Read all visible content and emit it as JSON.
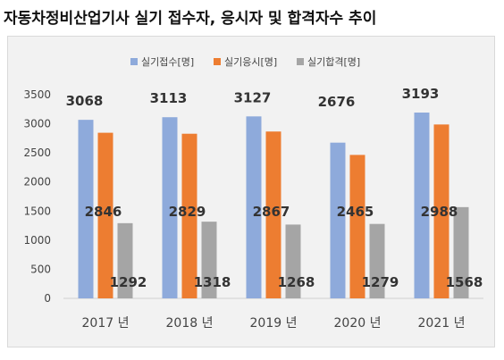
{
  "page": {
    "title": "자동차정비산업기사 실기 접수자, 응시자 및 합격자수 추이"
  },
  "chart_data": {
    "type": "bar",
    "categories": [
      "2017 년",
      "2018 년",
      "2019 년",
      "2020 년",
      "2021 년"
    ],
    "series": [
      {
        "name": "실기접수[명]",
        "color": "#8eaadb",
        "values": [
          3068,
          3113,
          3127,
          2676,
          3193
        ]
      },
      {
        "name": "실기응시[명]",
        "color": "#ed7d31",
        "values": [
          2846,
          2829,
          2867,
          2465,
          2988
        ]
      },
      {
        "name": "실기합격[명]",
        "color": "#a5a5a5",
        "values": [
          1292,
          1318,
          1268,
          1279,
          1568
        ]
      }
    ],
    "ylim": [
      0,
      3500
    ],
    "yticks": [
      0,
      500,
      1000,
      1500,
      2000,
      2500,
      3000,
      3500
    ],
    "grid": false,
    "legend_position": "top-center",
    "data_labels": true
  }
}
